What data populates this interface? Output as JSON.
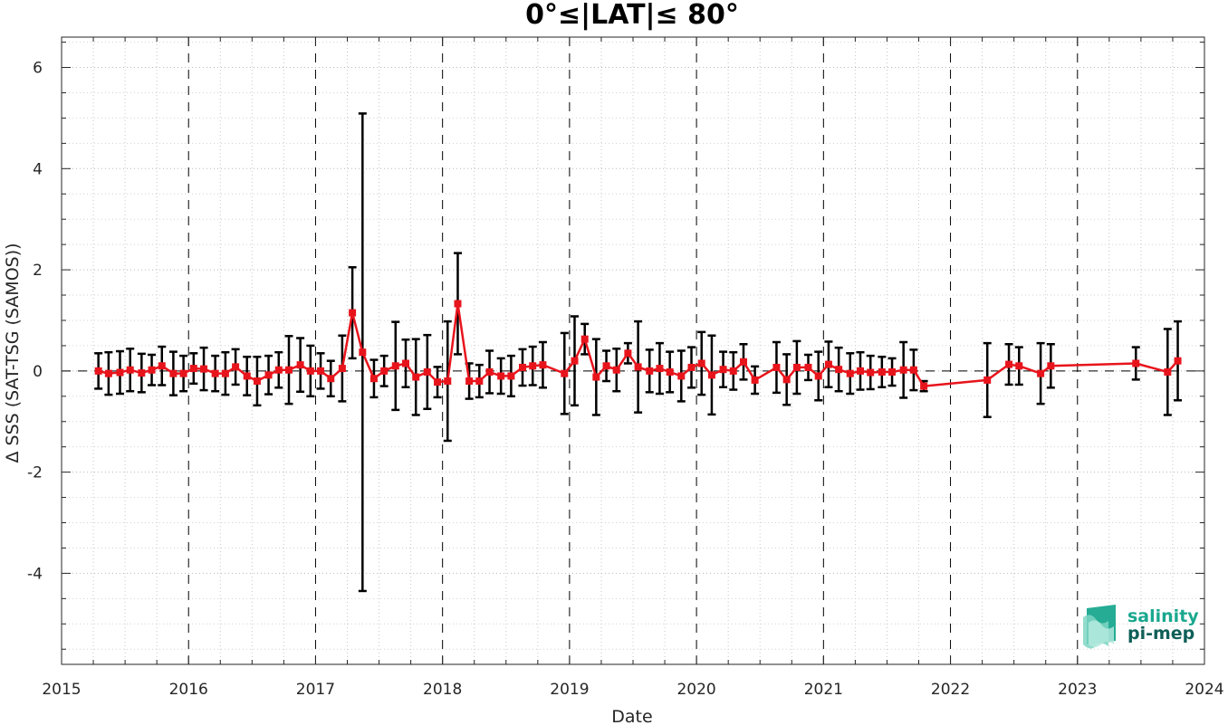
{
  "chart_data": {
    "type": "line",
    "title": "0°≤|LAT|≤ 80°",
    "xlabel": "Date",
    "ylabel": "Δ SSS (SAT-TSG (SAMOS))",
    "xlim": [
      2015,
      2024
    ],
    "ylim": [
      -5.8,
      6.6
    ],
    "x_ticks": [
      "2015",
      "2016",
      "2017",
      "2018",
      "2019",
      "2020",
      "2021",
      "2022",
      "2023",
      "2024"
    ],
    "y_ticks": [
      "6",
      "4",
      "2",
      "0",
      "-2",
      "-4"
    ],
    "y_tick_values": [
      6,
      4,
      2,
      0,
      -2,
      -4
    ],
    "grid": "dotted",
    "year_lines": [
      2016,
      2017,
      2018,
      2019,
      2020,
      2021,
      2022,
      2023
    ],
    "zero_line": true,
    "series": [
      {
        "color": "#e8141c",
        "error_bar_color": "#000000",
        "points": [
          {
            "x": 2015.29,
            "y": 0.0,
            "err": 0.35
          },
          {
            "x": 2015.37,
            "y": -0.05,
            "err": 0.42
          },
          {
            "x": 2015.46,
            "y": -0.03,
            "err": 0.42
          },
          {
            "x": 2015.54,
            "y": 0.02,
            "err": 0.42
          },
          {
            "x": 2015.63,
            "y": -0.04,
            "err": 0.38
          },
          {
            "x": 2015.71,
            "y": 0.02,
            "err": 0.3
          },
          {
            "x": 2015.79,
            "y": 0.1,
            "err": 0.38
          },
          {
            "x": 2015.88,
            "y": -0.05,
            "err": 0.43
          },
          {
            "x": 2015.96,
            "y": -0.05,
            "err": 0.35
          },
          {
            "x": 2016.04,
            "y": 0.05,
            "err": 0.3
          },
          {
            "x": 2016.12,
            "y": 0.04,
            "err": 0.42
          },
          {
            "x": 2016.21,
            "y": -0.05,
            "err": 0.35
          },
          {
            "x": 2016.29,
            "y": -0.05,
            "err": 0.42
          },
          {
            "x": 2016.37,
            "y": 0.08,
            "err": 0.35
          },
          {
            "x": 2016.46,
            "y": -0.1,
            "err": 0.38
          },
          {
            "x": 2016.54,
            "y": -0.2,
            "err": 0.48
          },
          {
            "x": 2016.63,
            "y": -0.08,
            "err": 0.38
          },
          {
            "x": 2016.71,
            "y": 0.02,
            "err": 0.35
          },
          {
            "x": 2016.79,
            "y": 0.02,
            "err": 0.67
          },
          {
            "x": 2016.88,
            "y": 0.12,
            "err": 0.53
          },
          {
            "x": 2016.96,
            "y": 0.0,
            "err": 0.5
          },
          {
            "x": 2017.04,
            "y": 0.0,
            "err": 0.35
          },
          {
            "x": 2017.12,
            "y": -0.15,
            "err": 0.35
          },
          {
            "x": 2017.21,
            "y": 0.05,
            "err": 0.65
          },
          {
            "x": 2017.29,
            "y": 1.15,
            "err": 0.9
          },
          {
            "x": 2017.37,
            "y": 0.37,
            "err": 4.72
          },
          {
            "x": 2017.46,
            "y": -0.15,
            "err": 0.37
          },
          {
            "x": 2017.54,
            "y": 0.0,
            "err": 0.3
          },
          {
            "x": 2017.63,
            "y": 0.1,
            "err": 0.87
          },
          {
            "x": 2017.71,
            "y": 0.15,
            "err": 0.47
          },
          {
            "x": 2017.79,
            "y": -0.12,
            "err": 0.75
          },
          {
            "x": 2017.88,
            "y": -0.02,
            "err": 0.73
          },
          {
            "x": 2017.96,
            "y": -0.22,
            "err": 0.3
          },
          {
            "x": 2018.04,
            "y": -0.2,
            "err": 1.18
          },
          {
            "x": 2018.12,
            "y": 1.33,
            "err": 1.0
          },
          {
            "x": 2018.21,
            "y": -0.2,
            "err": 0.35
          },
          {
            "x": 2018.29,
            "y": -0.2,
            "err": 0.32
          },
          {
            "x": 2018.37,
            "y": -0.02,
            "err": 0.42
          },
          {
            "x": 2018.46,
            "y": -0.1,
            "err": 0.35
          },
          {
            "x": 2018.54,
            "y": -0.1,
            "err": 0.4
          },
          {
            "x": 2018.63,
            "y": 0.07,
            "err": 0.36
          },
          {
            "x": 2018.71,
            "y": 0.1,
            "err": 0.38
          },
          {
            "x": 2018.79,
            "y": 0.12,
            "err": 0.45
          },
          {
            "x": 2018.96,
            "y": -0.05,
            "err": 0.8
          },
          {
            "x": 2019.04,
            "y": 0.2,
            "err": 0.88
          },
          {
            "x": 2019.12,
            "y": 0.63,
            "err": 0.3
          },
          {
            "x": 2019.21,
            "y": -0.12,
            "err": 0.75
          },
          {
            "x": 2019.29,
            "y": 0.1,
            "err": 0.3
          },
          {
            "x": 2019.37,
            "y": 0.02,
            "err": 0.42
          },
          {
            "x": 2019.46,
            "y": 0.35,
            "err": 0.2
          },
          {
            "x": 2019.54,
            "y": 0.08,
            "err": 0.9
          },
          {
            "x": 2019.63,
            "y": 0.0,
            "err": 0.42
          },
          {
            "x": 2019.71,
            "y": 0.05,
            "err": 0.5
          },
          {
            "x": 2019.79,
            "y": -0.02,
            "err": 0.4
          },
          {
            "x": 2019.88,
            "y": -0.1,
            "err": 0.5
          },
          {
            "x": 2019.96,
            "y": 0.07,
            "err": 0.4
          },
          {
            "x": 2020.04,
            "y": 0.15,
            "err": 0.62
          },
          {
            "x": 2020.12,
            "y": -0.08,
            "err": 0.78
          },
          {
            "x": 2020.21,
            "y": 0.03,
            "err": 0.35
          },
          {
            "x": 2020.29,
            "y": 0.0,
            "err": 0.37
          },
          {
            "x": 2020.37,
            "y": 0.18,
            "err": 0.35
          },
          {
            "x": 2020.46,
            "y": -0.18,
            "err": 0.27
          },
          {
            "x": 2020.63,
            "y": 0.07,
            "err": 0.5
          },
          {
            "x": 2020.71,
            "y": -0.17,
            "err": 0.5
          },
          {
            "x": 2020.79,
            "y": 0.07,
            "err": 0.52
          },
          {
            "x": 2020.88,
            "y": 0.07,
            "err": 0.25
          },
          {
            "x": 2020.96,
            "y": -0.1,
            "err": 0.48
          },
          {
            "x": 2021.04,
            "y": 0.13,
            "err": 0.45
          },
          {
            "x": 2021.12,
            "y": 0.03,
            "err": 0.43
          },
          {
            "x": 2021.21,
            "y": -0.05,
            "err": 0.4
          },
          {
            "x": 2021.29,
            "y": 0.0,
            "err": 0.37
          },
          {
            "x": 2021.37,
            "y": -0.03,
            "err": 0.33
          },
          {
            "x": 2021.46,
            "y": -0.02,
            "err": 0.3
          },
          {
            "x": 2021.54,
            "y": -0.02,
            "err": 0.27
          },
          {
            "x": 2021.63,
            "y": 0.02,
            "err": 0.55
          },
          {
            "x": 2021.71,
            "y": 0.02,
            "err": 0.4
          },
          {
            "x": 2021.79,
            "y": -0.3,
            "err": 0.1
          },
          {
            "x": 2022.29,
            "y": -0.18,
            "err": 0.73
          },
          {
            "x": 2022.46,
            "y": 0.13,
            "err": 0.4
          },
          {
            "x": 2022.54,
            "y": 0.1,
            "err": 0.37
          },
          {
            "x": 2022.71,
            "y": -0.05,
            "err": 0.6
          },
          {
            "x": 2022.79,
            "y": 0.1,
            "err": 0.43
          },
          {
            "x": 2023.46,
            "y": 0.15,
            "err": 0.32
          },
          {
            "x": 2023.71,
            "y": -0.02,
            "err": 0.85
          },
          {
            "x": 2023.79,
            "y": 0.2,
            "err": 0.78
          }
        ]
      }
    ]
  },
  "logo": {
    "line1": "salinity",
    "line2": "pi-mep",
    "color1": "#1aa88f",
    "color2": "#0e5f58"
  }
}
